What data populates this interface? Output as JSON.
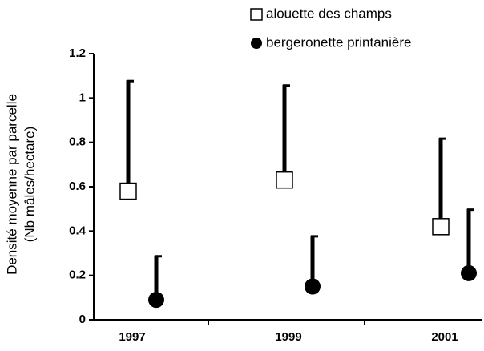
{
  "chart_data": {
    "type": "errorbar",
    "ylabel": [
      "Densité moyenne par parcelle",
      "(Nb mâles/hectare)"
    ],
    "categories": [
      "1997",
      "1999",
      "2001"
    ],
    "series": [
      {
        "name": "alouette des champs",
        "color": "#000000",
        "marker": "square",
        "values": [
          0.58,
          0.63,
          0.42
        ],
        "errors": [
          0.5,
          0.43,
          0.4
        ]
      },
      {
        "name": "bergeronette printanière",
        "color": "#000000",
        "marker": "circle",
        "values": [
          0.09,
          0.15,
          0.21
        ],
        "errors": [
          0.2,
          0.23,
          0.29
        ]
      }
    ],
    "ylim": [
      0,
      1.2
    ],
    "yticks": [
      0,
      0.2,
      0.4,
      0.6,
      0.8,
      1,
      1.2
    ],
    "legend": "top-right"
  }
}
